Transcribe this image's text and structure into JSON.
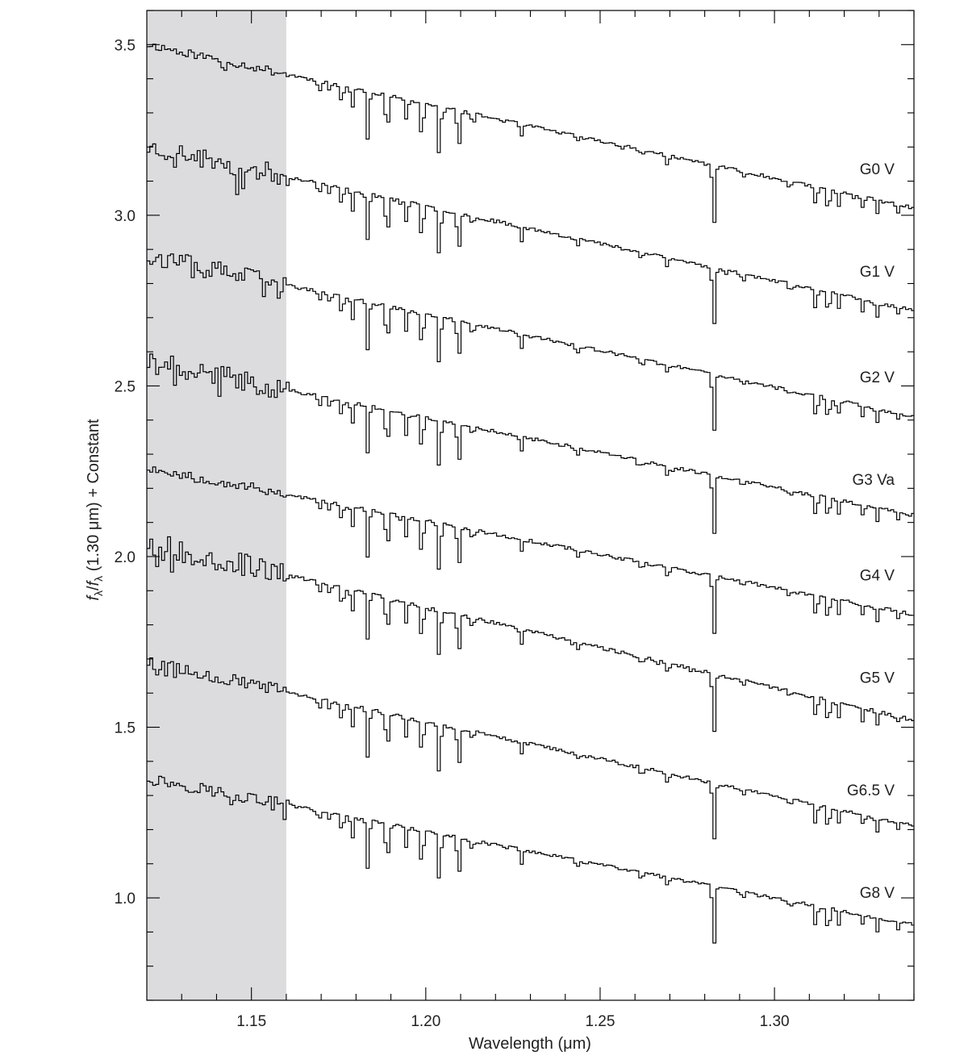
{
  "chart_data": {
    "type": "line",
    "title": "",
    "xlabel": "Wavelength (μm)",
    "ylabel_parts": {
      "f1": "f",
      "sub1": "λ",
      "slash": "/",
      "f2": "f",
      "sub2": "λ",
      "rest": " (1.30 μm) + Constant"
    },
    "xlim": [
      1.12,
      1.34
    ],
    "ylim": [
      0.7,
      3.6
    ],
    "x_ticks_labeled": [
      {
        "value": 1.15,
        "label": "1.15"
      },
      {
        "value": 1.2,
        "label": "1.20"
      },
      {
        "value": 1.25,
        "label": "1.25"
      },
      {
        "value": 1.3,
        "label": "1.30"
      }
    ],
    "x_minor_step": 0.01,
    "y_ticks_labeled": [
      {
        "value": 1.0,
        "label": "1.0"
      },
      {
        "value": 1.5,
        "label": "1.5"
      },
      {
        "value": 2.0,
        "label": "2.0"
      },
      {
        "value": 2.5,
        "label": "2.5"
      },
      {
        "value": 3.0,
        "label": "3.0"
      },
      {
        "value": 3.5,
        "label": "3.5"
      }
    ],
    "y_minor_step": 0.1,
    "shaded_region": {
      "x0": 1.12,
      "x1": 1.16,
      "color": "#dcdcde"
    },
    "absorption_lines": [
      {
        "x": 1.169,
        "depth": 0.03
      },
      {
        "x": 1.172,
        "depth": 0.02
      },
      {
        "x": 1.1755,
        "depth": 0.05
      },
      {
        "x": 1.1785,
        "depth": 0.06
      },
      {
        "x": 1.183,
        "depth": 0.14
      },
      {
        "x": 1.1885,
        "depth": 0.12
      },
      {
        "x": 1.194,
        "depth": 0.06
      },
      {
        "x": 1.1985,
        "depth": 0.11
      },
      {
        "x": 1.2035,
        "depth": 0.15
      },
      {
        "x": 1.209,
        "depth": 0.12
      },
      {
        "x": 1.213,
        "depth": 0.03
      },
      {
        "x": 1.227,
        "depth": 0.04
      },
      {
        "x": 1.243,
        "depth": 0.02
      },
      {
        "x": 1.2615,
        "depth": 0.02
      },
      {
        "x": 1.269,
        "depth": 0.03
      },
      {
        "x": 1.2822,
        "depth": 0.18
      },
      {
        "x": 1.2905,
        "depth": 0.02
      },
      {
        "x": 1.304,
        "depth": 0.02
      },
      {
        "x": 1.3115,
        "depth": 0.06
      },
      {
        "x": 1.315,
        "depth": 0.07
      },
      {
        "x": 1.318,
        "depth": 0.04
      },
      {
        "x": 1.325,
        "depth": 0.03
      },
      {
        "x": 1.329,
        "depth": 0.04
      },
      {
        "x": 1.335,
        "depth": 0.02
      }
    ],
    "series": [
      {
        "name": "G0 V",
        "start": 3.5,
        "end": 3.02,
        "noise": 0.012,
        "label_y": 3.12,
        "seed": 11
      },
      {
        "name": "G1 V",
        "start": 3.2,
        "end": 2.72,
        "noise": 0.03,
        "label_y": 2.82,
        "seed": 23
      },
      {
        "name": "G2 V",
        "start": 2.88,
        "end": 2.41,
        "noise": 0.028,
        "label_y": 2.51,
        "seed": 37
      },
      {
        "name": "G3 Va",
        "start": 2.57,
        "end": 2.12,
        "noise": 0.032,
        "label_y": 2.21,
        "seed": 41
      },
      {
        "name": "G4 V",
        "start": 2.26,
        "end": 1.83,
        "noise": 0.014,
        "label_y": 1.93,
        "seed": 53
      },
      {
        "name": "G5 V",
        "start": 2.04,
        "end": 1.52,
        "noise": 0.034,
        "label_y": 1.63,
        "seed": 67
      },
      {
        "name": "G6.5 V",
        "start": 1.69,
        "end": 1.21,
        "noise": 0.018,
        "label_y": 1.3,
        "seed": 79
      },
      {
        "name": "G8 V",
        "start": 1.35,
        "end": 0.92,
        "noise": 0.018,
        "label_y": 1.0,
        "seed": 97
      }
    ]
  }
}
